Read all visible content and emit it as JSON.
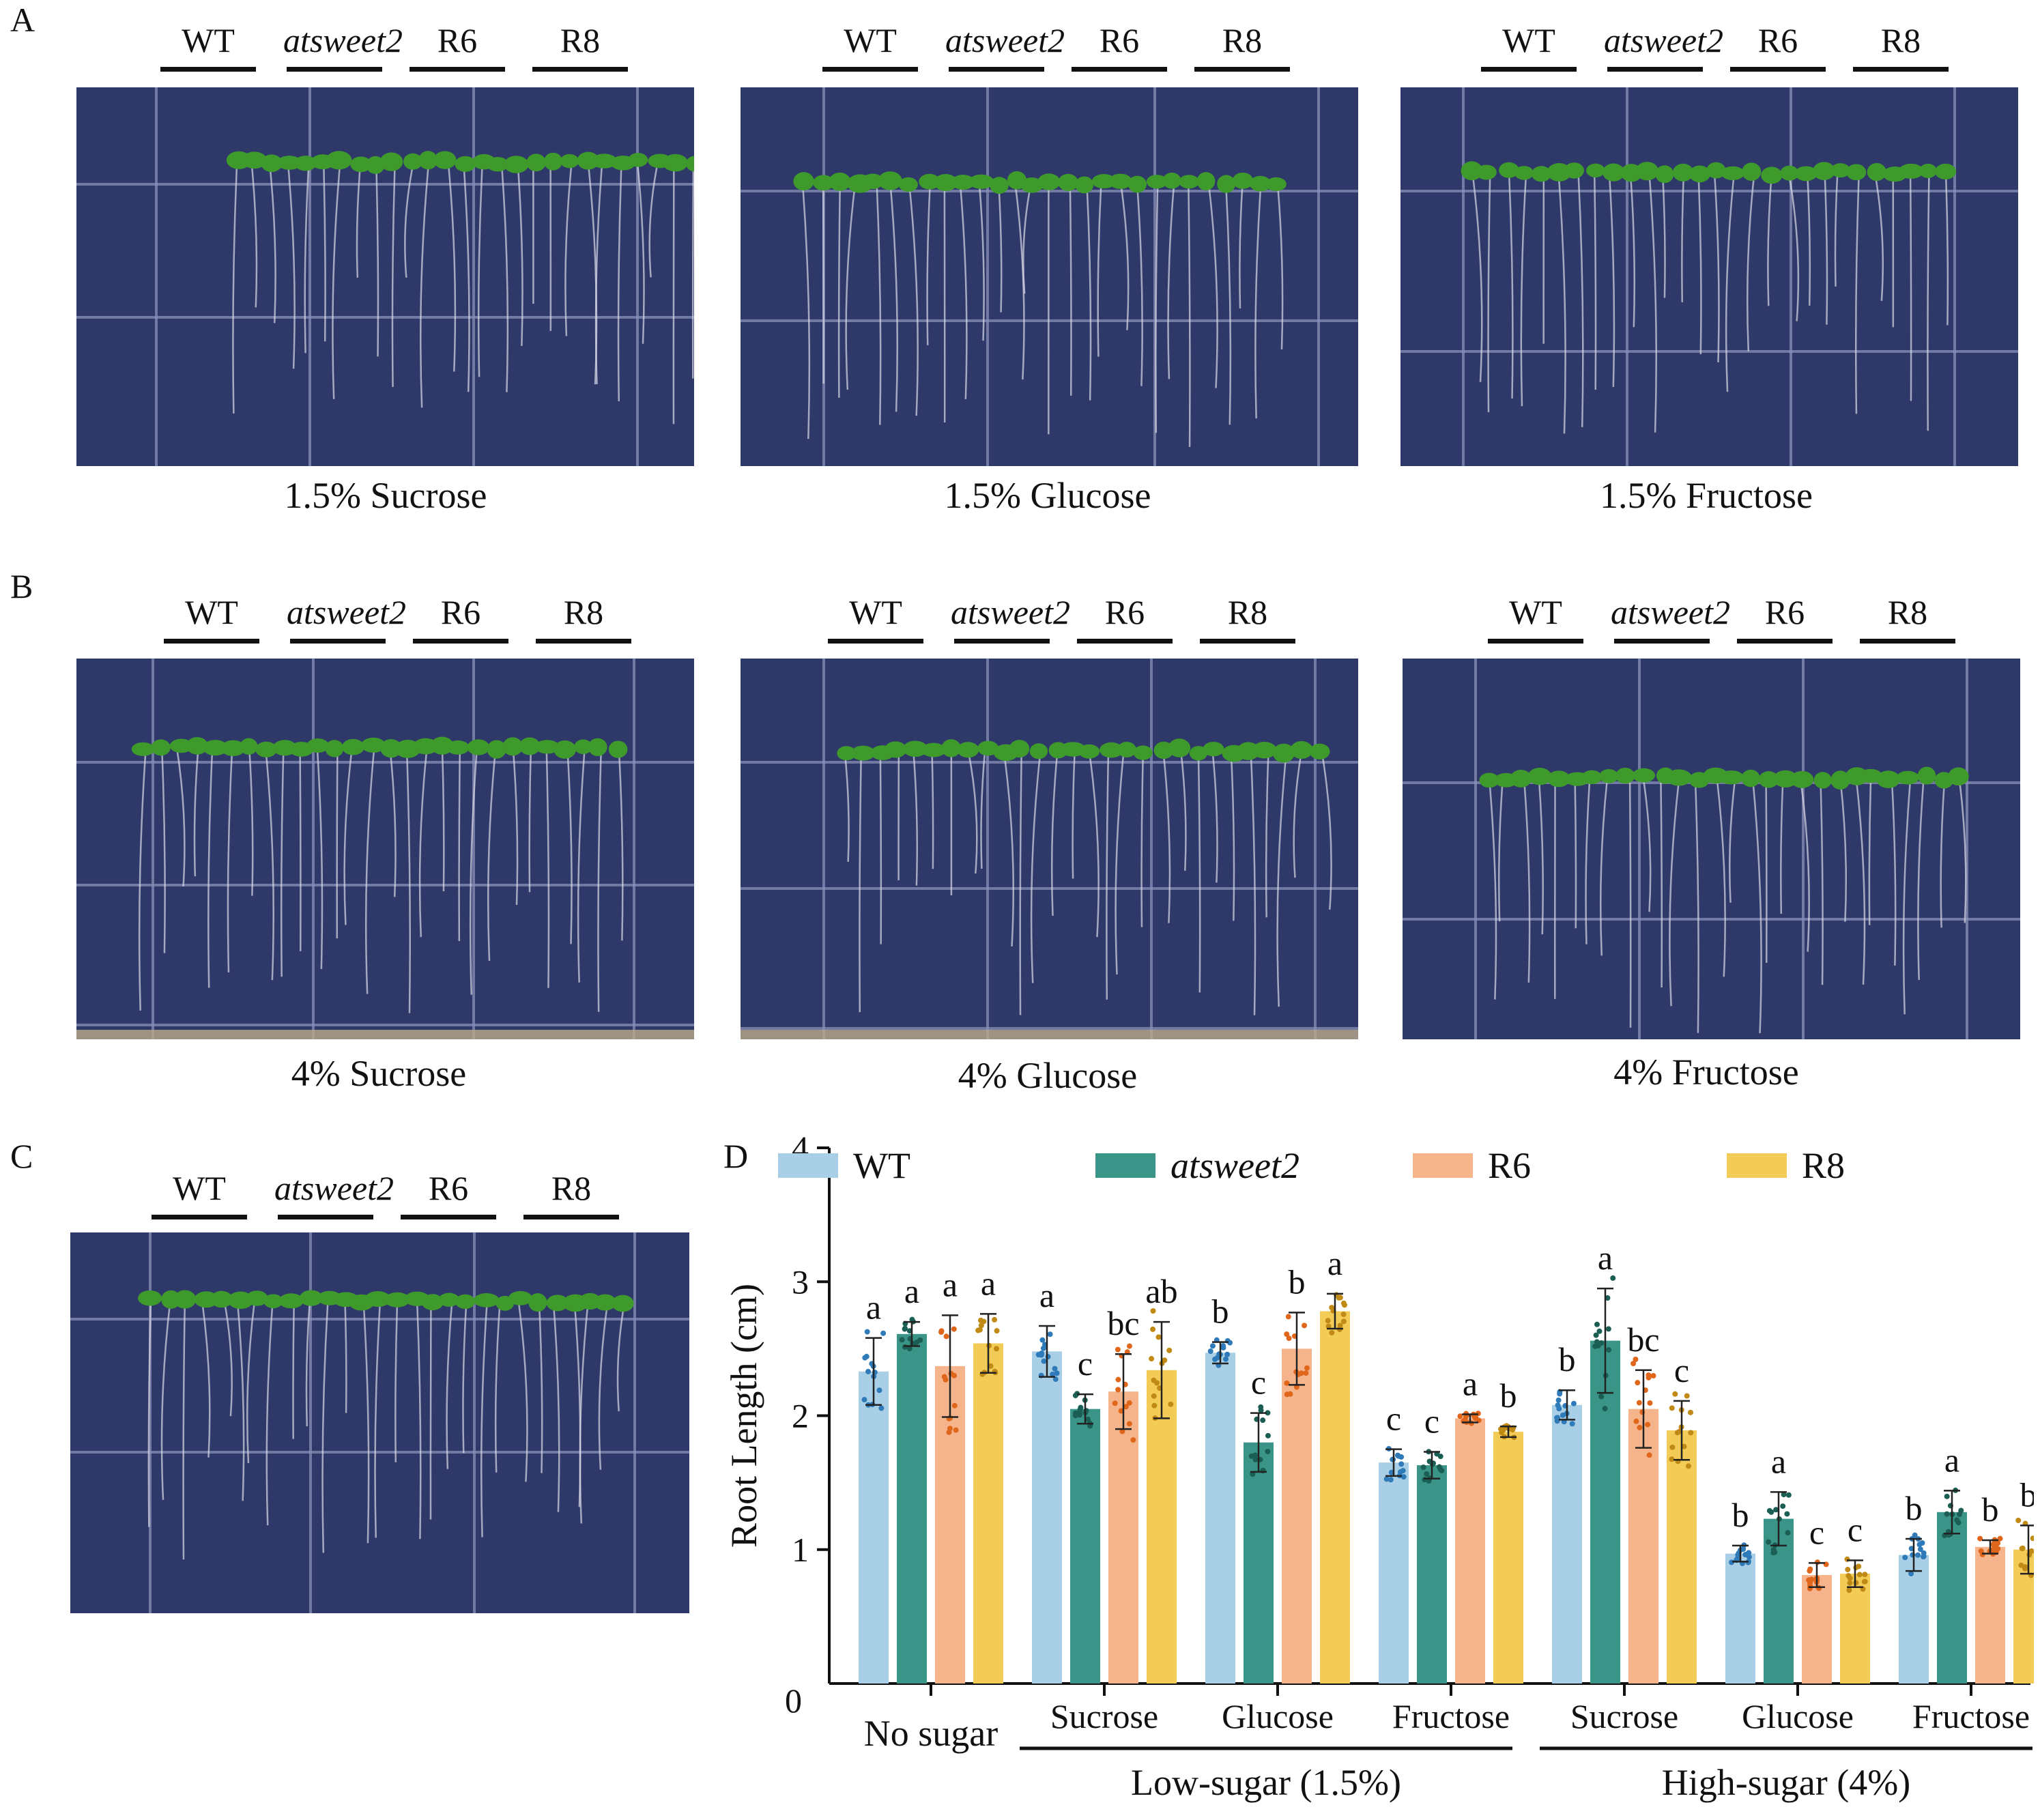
{
  "panels": {
    "A": {
      "letter": "A",
      "groups": [
        "WT",
        "atsweet2",
        "R6",
        "R8"
      ],
      "captions": [
        "1.5% Sucrose",
        "1.5% Glucose",
        "1.5% Fructose"
      ]
    },
    "B": {
      "letter": "B",
      "groups": [
        "WT",
        "atsweet2",
        "R6",
        "R8"
      ],
      "captions": [
        "4% Sucrose",
        "4% Glucose",
        "4% Fructose"
      ]
    },
    "C": {
      "letter": "C",
      "groups": [
        "WT",
        "atsweet2",
        "R6",
        "R8"
      ]
    },
    "D": {
      "letter": "D"
    }
  },
  "colors": {
    "plate": "#2e3869",
    "grid": "#8a90b8",
    "leaf": "#3f9a2c",
    "root": "#d8dae6"
  },
  "chart_data": {
    "type": "bar",
    "ylabel": "Root Length (cm)",
    "ylim": [
      0,
      4
    ],
    "yticks": [
      0,
      1,
      2,
      3,
      4
    ],
    "categories": [
      "No sugar",
      "Sucrose",
      "Glucose",
      "Fructose",
      "Sucrose",
      "Glucose",
      "Fructose"
    ],
    "category_groups": [
      {
        "label": "Low-sugar (1.5%)",
        "categories": [
          1,
          2,
          3
        ]
      },
      {
        "label": "High-sugar (4%)",
        "categories": [
          4,
          5,
          6
        ]
      }
    ],
    "series": [
      {
        "name": "WT",
        "italic": false,
        "color": "#a9cfe6",
        "dot": "#2f7ab8",
        "values": [
          2.33,
          2.48,
          2.47,
          1.65,
          2.08,
          0.97,
          0.96
        ],
        "sd": [
          0.25,
          0.19,
          0.08,
          0.1,
          0.11,
          0.06,
          0.12
        ],
        "letters": [
          "a",
          "a",
          "b",
          "c",
          "b",
          "b",
          "b"
        ]
      },
      {
        "name": "atsweet2",
        "italic": true,
        "color": "#3a9487",
        "dot": "#1a5e54",
        "values": [
          2.61,
          2.05,
          1.8,
          1.63,
          2.56,
          1.23,
          1.28
        ],
        "sd": [
          0.09,
          0.11,
          0.22,
          0.1,
          0.39,
          0.2,
          0.16
        ],
        "letters": [
          "a",
          "c",
          "c",
          "c",
          "a",
          "a",
          "a"
        ]
      },
      {
        "name": "R6",
        "italic": false,
        "color": "#f5b48b",
        "dot": "#e0661c",
        "values": [
          2.37,
          2.18,
          2.5,
          1.98,
          2.05,
          0.81,
          1.02
        ],
        "sd": [
          0.38,
          0.28,
          0.27,
          0.03,
          0.29,
          0.09,
          0.05
        ],
        "letters": [
          "a",
          "bc",
          "b",
          "a",
          "bc",
          "c",
          "b"
        ]
      },
      {
        "name": "R8",
        "italic": false,
        "color": "#f3cc58",
        "dot": "#c08a14",
        "values": [
          2.54,
          2.34,
          2.78,
          1.88,
          1.89,
          0.82,
          1.0
        ],
        "sd": [
          0.22,
          0.36,
          0.13,
          0.04,
          0.22,
          0.1,
          0.18
        ],
        "letters": [
          "a",
          "ab",
          "a",
          "b",
          "c",
          "c",
          "b"
        ]
      }
    ]
  }
}
